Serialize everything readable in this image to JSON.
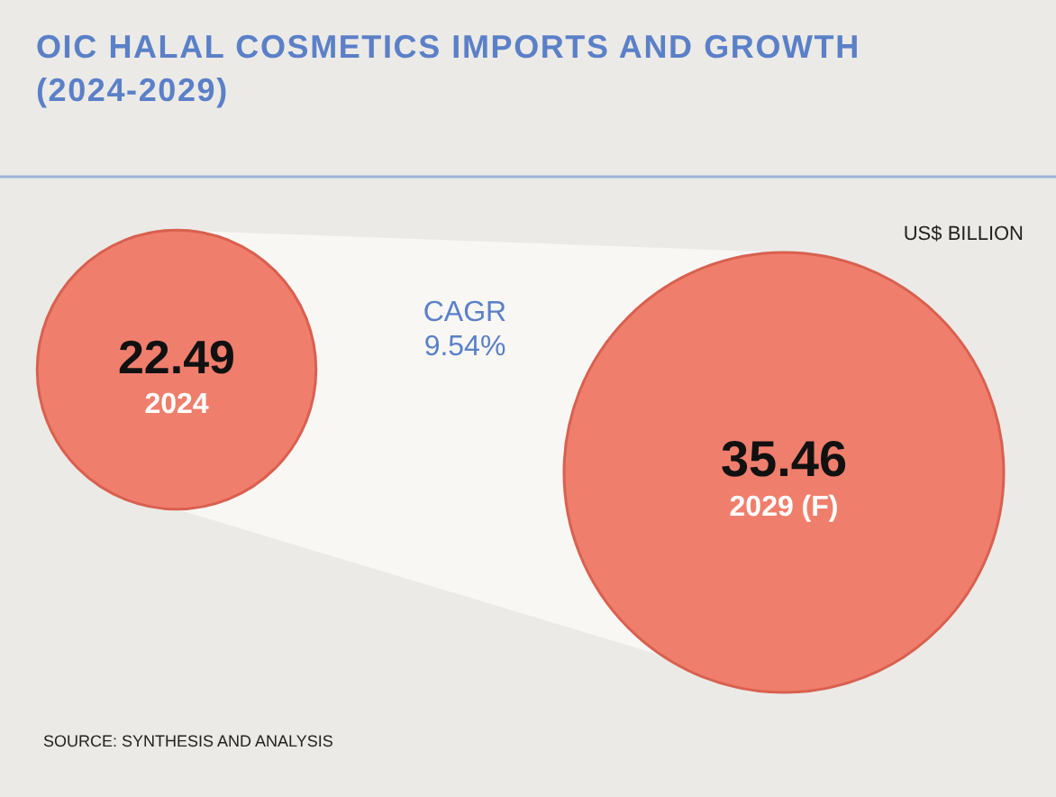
{
  "chart_data": {
    "type": "other",
    "title": "OIC HALAL COSMETICS IMPORTS AND GROWTH (2024-2029)",
    "ylabel": "US$ BILLION",
    "categories": [
      "2024",
      "2029 (F)"
    ],
    "values": [
      22.49,
      35.46
    ],
    "colors": [
      "#f07e6c",
      "#f07e6c"
    ],
    "data_labels": true,
    "annotations": [
      "CAGR 9.54%",
      "SOURCE: SYNTHESIS AND ANALYSIS"
    ]
  }
}
